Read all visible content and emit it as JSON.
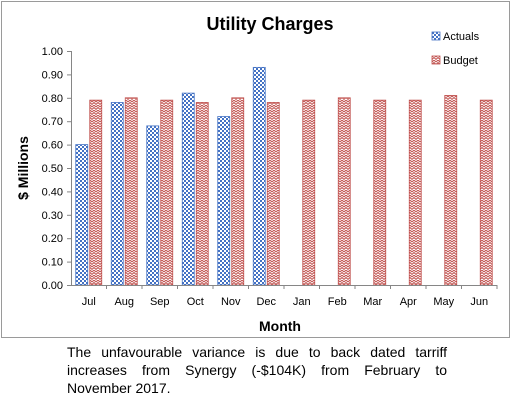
{
  "chart_data": {
    "type": "bar",
    "title": "Utility Charges",
    "xlabel": "Month",
    "ylabel": "$ Millions",
    "ylim": [
      0,
      1.0
    ],
    "ytick_step": 0.1,
    "yticks": [
      "0.00",
      "0.10",
      "0.20",
      "0.30",
      "0.40",
      "0.50",
      "0.60",
      "0.70",
      "0.80",
      "0.90",
      "1.00"
    ],
    "categories": [
      "Jul",
      "Aug",
      "Sep",
      "Oct",
      "Nov",
      "Dec",
      "Jan",
      "Feb",
      "Mar",
      "Apr",
      "May",
      "Jun"
    ],
    "series": [
      {
        "name": "Actuals",
        "color": "#4472c4",
        "pattern": "checkerboard",
        "values": [
          0.6,
          0.78,
          0.68,
          0.82,
          0.72,
          0.93,
          null,
          null,
          null,
          null,
          null,
          null
        ]
      },
      {
        "name": "Budget",
        "color": "#c0504d",
        "pattern": "zigzag",
        "values": [
          0.79,
          0.8,
          0.79,
          0.78,
          0.8,
          0.78,
          0.79,
          0.8,
          0.79,
          0.79,
          0.81,
          0.79
        ]
      }
    ],
    "legend_position": "top-right",
    "grid": false
  },
  "caption": "The unfavourable variance is due to back dated tarriff increases from Synergy (-$104K) from February to November 2017."
}
